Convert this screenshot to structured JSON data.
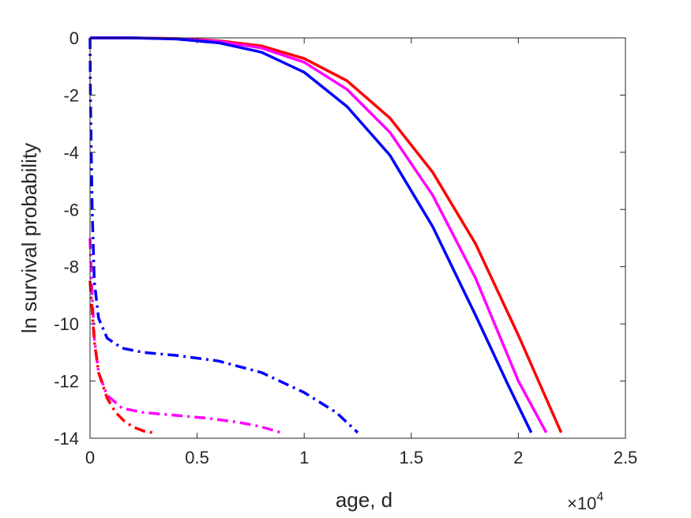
{
  "chart_data": {
    "type": "line",
    "xlabel": "age, d",
    "ylabel": "ln survival probability",
    "x_multiplier": {
      "base": "×10",
      "exponent": "4"
    },
    "xlim": [
      0,
      25000
    ],
    "ylim": [
      -14,
      0
    ],
    "xticks": [
      0,
      5000,
      10000,
      15000,
      20000,
      25000
    ],
    "xtick_labels": [
      "0",
      "0.5",
      "1",
      "1.5",
      "2",
      "2.5"
    ],
    "yticks": [
      0,
      -2,
      -4,
      -6,
      -8,
      -10,
      -12,
      -14
    ],
    "ytick_labels": [
      "0",
      "-2",
      "-4",
      "-6",
      "-8",
      "-10",
      "-12",
      "-14"
    ],
    "grid": false,
    "series": [
      {
        "color": "#ff0000",
        "style": "solid",
        "x": [
          0,
          2000,
          4000,
          6000,
          8000,
          10000,
          12000,
          14000,
          16000,
          18000,
          20000,
          22000
        ],
        "y": [
          0,
          0,
          -0.02,
          -0.1,
          -0.28,
          -0.72,
          -1.5,
          -2.8,
          -4.7,
          -7.2,
          -10.4,
          -13.8
        ]
      },
      {
        "color": "#ff00ff",
        "style": "solid",
        "x": [
          0,
          2000,
          4000,
          6000,
          8000,
          10000,
          12000,
          14000,
          16000,
          18000,
          20000,
          21300
        ],
        "y": [
          0,
          0,
          -0.03,
          -0.12,
          -0.35,
          -0.85,
          -1.8,
          -3.3,
          -5.5,
          -8.4,
          -12.0,
          -13.8
        ]
      },
      {
        "color": "#0000ff",
        "style": "solid",
        "x": [
          0,
          2000,
          4000,
          6000,
          8000,
          10000,
          12000,
          14000,
          16000,
          18000,
          19500,
          20600
        ],
        "y": [
          0,
          0,
          -0.04,
          -0.17,
          -0.5,
          -1.2,
          -2.4,
          -4.1,
          -6.6,
          -9.7,
          -12.1,
          -13.8
        ]
      },
      {
        "color": "#0000ff",
        "style": "dashdot",
        "x": [
          0,
          20,
          100,
          200,
          400,
          800,
          1500,
          2500,
          4000,
          6000,
          8000,
          10000,
          11500,
          12500
        ],
        "y": [
          0,
          -2,
          -6,
          -8.5,
          -9.8,
          -10.5,
          -10.85,
          -11.0,
          -11.1,
          -11.3,
          -11.7,
          -12.4,
          -13.1,
          -13.8
        ]
      },
      {
        "color": "#ff00ff",
        "style": "dashdot",
        "x": [
          0,
          100,
          200,
          400,
          800,
          1500,
          2500,
          4000,
          5500,
          7000,
          8000,
          8900
        ],
        "y": [
          -7,
          -9,
          -10.5,
          -11.7,
          -12.5,
          -12.95,
          -13.1,
          -13.2,
          -13.3,
          -13.45,
          -13.6,
          -13.8
        ]
      },
      {
        "color": "#ff0000",
        "style": "dashdot",
        "x": [
          0,
          200,
          400,
          800,
          1200,
          1600,
          2000,
          2500,
          2900
        ],
        "y": [
          -8.5,
          -10.6,
          -11.7,
          -12.6,
          -13.1,
          -13.4,
          -13.6,
          -13.75,
          -13.8
        ]
      }
    ]
  }
}
